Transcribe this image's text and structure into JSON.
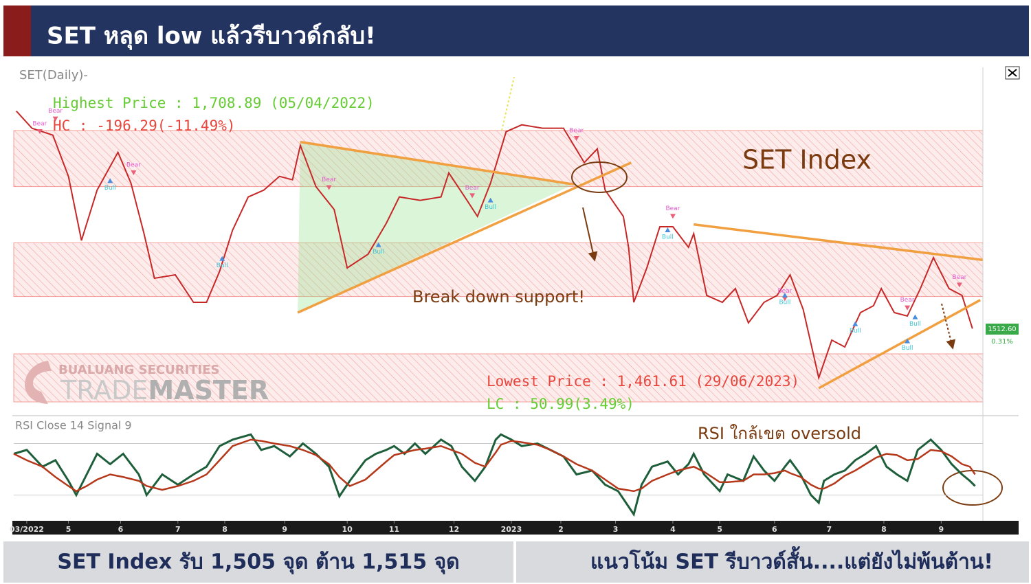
{
  "header": {
    "title": "SET หลุด low แล้วรีบาวด์กลับ!"
  },
  "chart_data": [
    {
      "type": "line",
      "title": "SET(Daily)-",
      "color": "#c62828",
      "xlim": [
        0,
        372
      ],
      "ylim": [
        1440,
        1740
      ],
      "x": [
        1,
        7,
        15,
        21,
        26,
        32,
        40,
        45,
        50,
        54,
        62,
        69,
        74,
        79,
        84,
        90,
        96,
        102,
        107,
        110,
        116,
        123,
        128,
        136,
        143,
        148,
        156,
        164,
        167,
        174,
        178,
        183,
        189,
        195,
        203,
        211,
        219,
        224,
        227,
        234,
        236,
        238,
        243,
        248,
        253,
        259,
        261,
        266,
        272,
        277,
        282,
        288,
        293,
        298,
        303,
        309,
        314,
        319,
        325,
        330,
        333,
        338,
        343,
        348,
        353,
        359,
        364,
        368
      ],
      "values": [
        1703,
        1688,
        1682,
        1646,
        1590,
        1634,
        1667,
        1640,
        1596,
        1557,
        1560,
        1536,
        1536,
        1563,
        1599,
        1628,
        1634,
        1646,
        1643,
        1673,
        1637,
        1617,
        1566,
        1578,
        1605,
        1628,
        1625,
        1628,
        1649,
        1625,
        1611,
        1640,
        1685,
        1691,
        1688,
        1688,
        1658,
        1670,
        1634,
        1611,
        1584,
        1536,
        1566,
        1602,
        1602,
        1584,
        1596,
        1542,
        1536,
        1548,
        1518,
        1536,
        1542,
        1560,
        1530,
        1470,
        1503,
        1497,
        1527,
        1533,
        1548,
        1527,
        1524,
        1548,
        1575,
        1548,
        1542,
        1513
      ],
      "zones": [
        [
          1637,
          1686
        ],
        [
          1541,
          1588
        ],
        [
          1449,
          1491
        ]
      ],
      "trendlines": [
        {
          "x": [
            110,
            215
          ],
          "values": [
            1676,
            1639
          ]
        },
        {
          "x": [
            109,
            237
          ],
          "values": [
            1527,
            1658
          ]
        },
        {
          "x": [
            261,
            372
          ],
          "values": [
            1604,
            1573
          ]
        },
        {
          "x": [
            309,
            371
          ],
          "values": [
            1461,
            1538
          ]
        }
      ],
      "signals": [
        {
          "label": "Bear",
          "x": 16,
          "value": 1703
        },
        {
          "label": "Bear",
          "x": 10,
          "value": 1692
        },
        {
          "label": "Bear",
          "x": 46,
          "value": 1656
        },
        {
          "label": "Bear",
          "x": 121,
          "value": 1643
        },
        {
          "label": "Bear",
          "x": 176,
          "value": 1636
        },
        {
          "label": "Bear",
          "x": 216,
          "value": 1686
        },
        {
          "label": "Bear",
          "x": 253,
          "value": 1618
        },
        {
          "label": "Bear",
          "x": 296,
          "value": 1546
        },
        {
          "label": "Bear",
          "x": 363,
          "value": 1558
        },
        {
          "label": "Bear",
          "x": 343,
          "value": 1538
        },
        {
          "label": "Bull",
          "x": 37,
          "value": 1636
        },
        {
          "label": "Bull",
          "x": 80,
          "value": 1568
        },
        {
          "label": "Bull",
          "x": 140,
          "value": 1580
        },
        {
          "label": "Bull",
          "x": 183,
          "value": 1619
        },
        {
          "label": "Bull",
          "x": 251,
          "value": 1593
        },
        {
          "label": "Bull",
          "x": 296,
          "value": 1536
        },
        {
          "label": "Bull",
          "x": 323,
          "value": 1511
        },
        {
          "label": "Bull",
          "x": 343,
          "value": 1496
        },
        {
          "label": "Bull",
          "x": 346,
          "value": 1517
        }
      ],
      "last_price": {
        "value": 1512.6,
        "label": "1512.60"
      },
      "change": "0.31%",
      "annotations": [
        {
          "text": "Highest Price : 1,708.89 (05/04/2022)",
          "color": "#66cc33"
        },
        {
          "text": "HC : -196.29(-11.49%)",
          "color": "#e8453c"
        },
        {
          "text": "SET Index",
          "color": "#7a3b10"
        },
        {
          "text": "Break down support!",
          "color": "#7a3b10"
        },
        {
          "text": "Lowest Price : 1,461.61 (29/06/2023)",
          "color": "#e8453c"
        },
        {
          "text": "LC : 50.99(3.49%)",
          "color": "#66cc33"
        }
      ],
      "watermark": {
        "company": "BUALUANG SECURITIES",
        "brand_light": "TRADE",
        "brand_bold": "MASTER"
      }
    },
    {
      "type": "line",
      "title": "RSI Close 14 Signal 9",
      "annotation": "RSI ใกล้เขต oversold",
      "xlim": [
        0,
        372
      ],
      "ylim": [
        10,
        90
      ],
      "levels": [
        30,
        70
      ],
      "xticks": [
        {
          "value": 5,
          "label": "03/2022"
        },
        {
          "value": 21,
          "label": "5"
        },
        {
          "value": 41,
          "label": "6"
        },
        {
          "value": 63,
          "label": "7"
        },
        {
          "value": 81,
          "label": "8"
        },
        {
          "value": 104,
          "label": "9"
        },
        {
          "value": 128,
          "label": "10"
        },
        {
          "value": 146,
          "label": "11"
        },
        {
          "value": 169,
          "label": "12"
        },
        {
          "value": 191,
          "label": "2023"
        },
        {
          "value": 210,
          "label": "2"
        },
        {
          "value": 231,
          "label": "3"
        },
        {
          "value": 253,
          "label": "4"
        },
        {
          "value": 271,
          "label": "5"
        },
        {
          "value": 292,
          "label": "6"
        },
        {
          "value": 313,
          "label": "7"
        },
        {
          "value": 334,
          "label": "8"
        },
        {
          "value": 356,
          "label": "9"
        }
      ],
      "x": [
        0,
        5,
        11,
        16,
        21,
        24,
        28,
        32,
        37,
        42,
        48,
        51,
        57,
        63,
        69,
        74,
        79,
        84,
        91,
        95,
        100,
        106,
        111,
        116,
        121,
        125,
        129,
        135,
        139,
        143,
        146,
        150,
        154,
        158,
        164,
        168,
        172,
        177,
        181,
        185,
        187,
        191,
        195,
        201,
        206,
        211,
        216,
        222,
        227,
        232,
        238,
        241,
        245,
        251,
        255,
        259,
        261,
        265,
        271,
        274,
        280,
        284,
        288,
        292,
        296,
        298,
        302,
        306,
        309,
        311,
        315,
        319,
        323,
        327,
        331,
        335,
        339,
        343,
        347,
        352,
        356,
        360,
        364,
        367,
        369
      ],
      "series": [
        {
          "color": "#1e5e3a",
          "values": [
            62,
            65,
            52,
            57,
            41,
            30,
            46,
            62,
            54,
            62,
            46,
            30,
            46,
            38,
            46,
            52,
            68,
            73,
            77,
            65,
            68,
            60,
            70,
            62,
            52,
            29,
            41,
            57,
            62,
            65,
            68,
            62,
            70,
            62,
            73,
            68,
            52,
            41,
            52,
            73,
            77,
            73,
            68,
            70,
            65,
            60,
            46,
            49,
            38,
            33,
            15,
            38,
            52,
            56,
            46,
            54,
            62,
            46,
            33,
            46,
            41,
            60,
            49,
            41,
            52,
            57,
            46,
            30,
            24,
            41,
            46,
            49,
            57,
            62,
            68,
            52,
            46,
            41,
            65,
            73,
            65,
            54,
            46,
            41,
            37
          ]
        },
        {
          "color": "#b5381b",
          "values": [
            62,
            57,
            52,
            44,
            37,
            33,
            37,
            42,
            46,
            44,
            41,
            37,
            34,
            37,
            41,
            46,
            57,
            68,
            73,
            72,
            70,
            68,
            65,
            61,
            54,
            44,
            37,
            42,
            49,
            56,
            61,
            63,
            65,
            66,
            68,
            65,
            62,
            55,
            52,
            63,
            69,
            72,
            71,
            69,
            65,
            60,
            54,
            49,
            42,
            35,
            33,
            35,
            41,
            46,
            49,
            51,
            52,
            48,
            40,
            40,
            41,
            46,
            46,
            47,
            49,
            47,
            44,
            38,
            35,
            35,
            39,
            45,
            49,
            54,
            59,
            62,
            61,
            57,
            58,
            65,
            64,
            60,
            54,
            52,
            46
          ]
        }
      ]
    }
  ],
  "footer": {
    "left": "SET Index รับ 1,505 จุด ต้าน 1,515 จุด",
    "right": "แนวโน้ม SET รีบาวด์สั้น....แต่ยังไม่พ้นต้าน!"
  }
}
